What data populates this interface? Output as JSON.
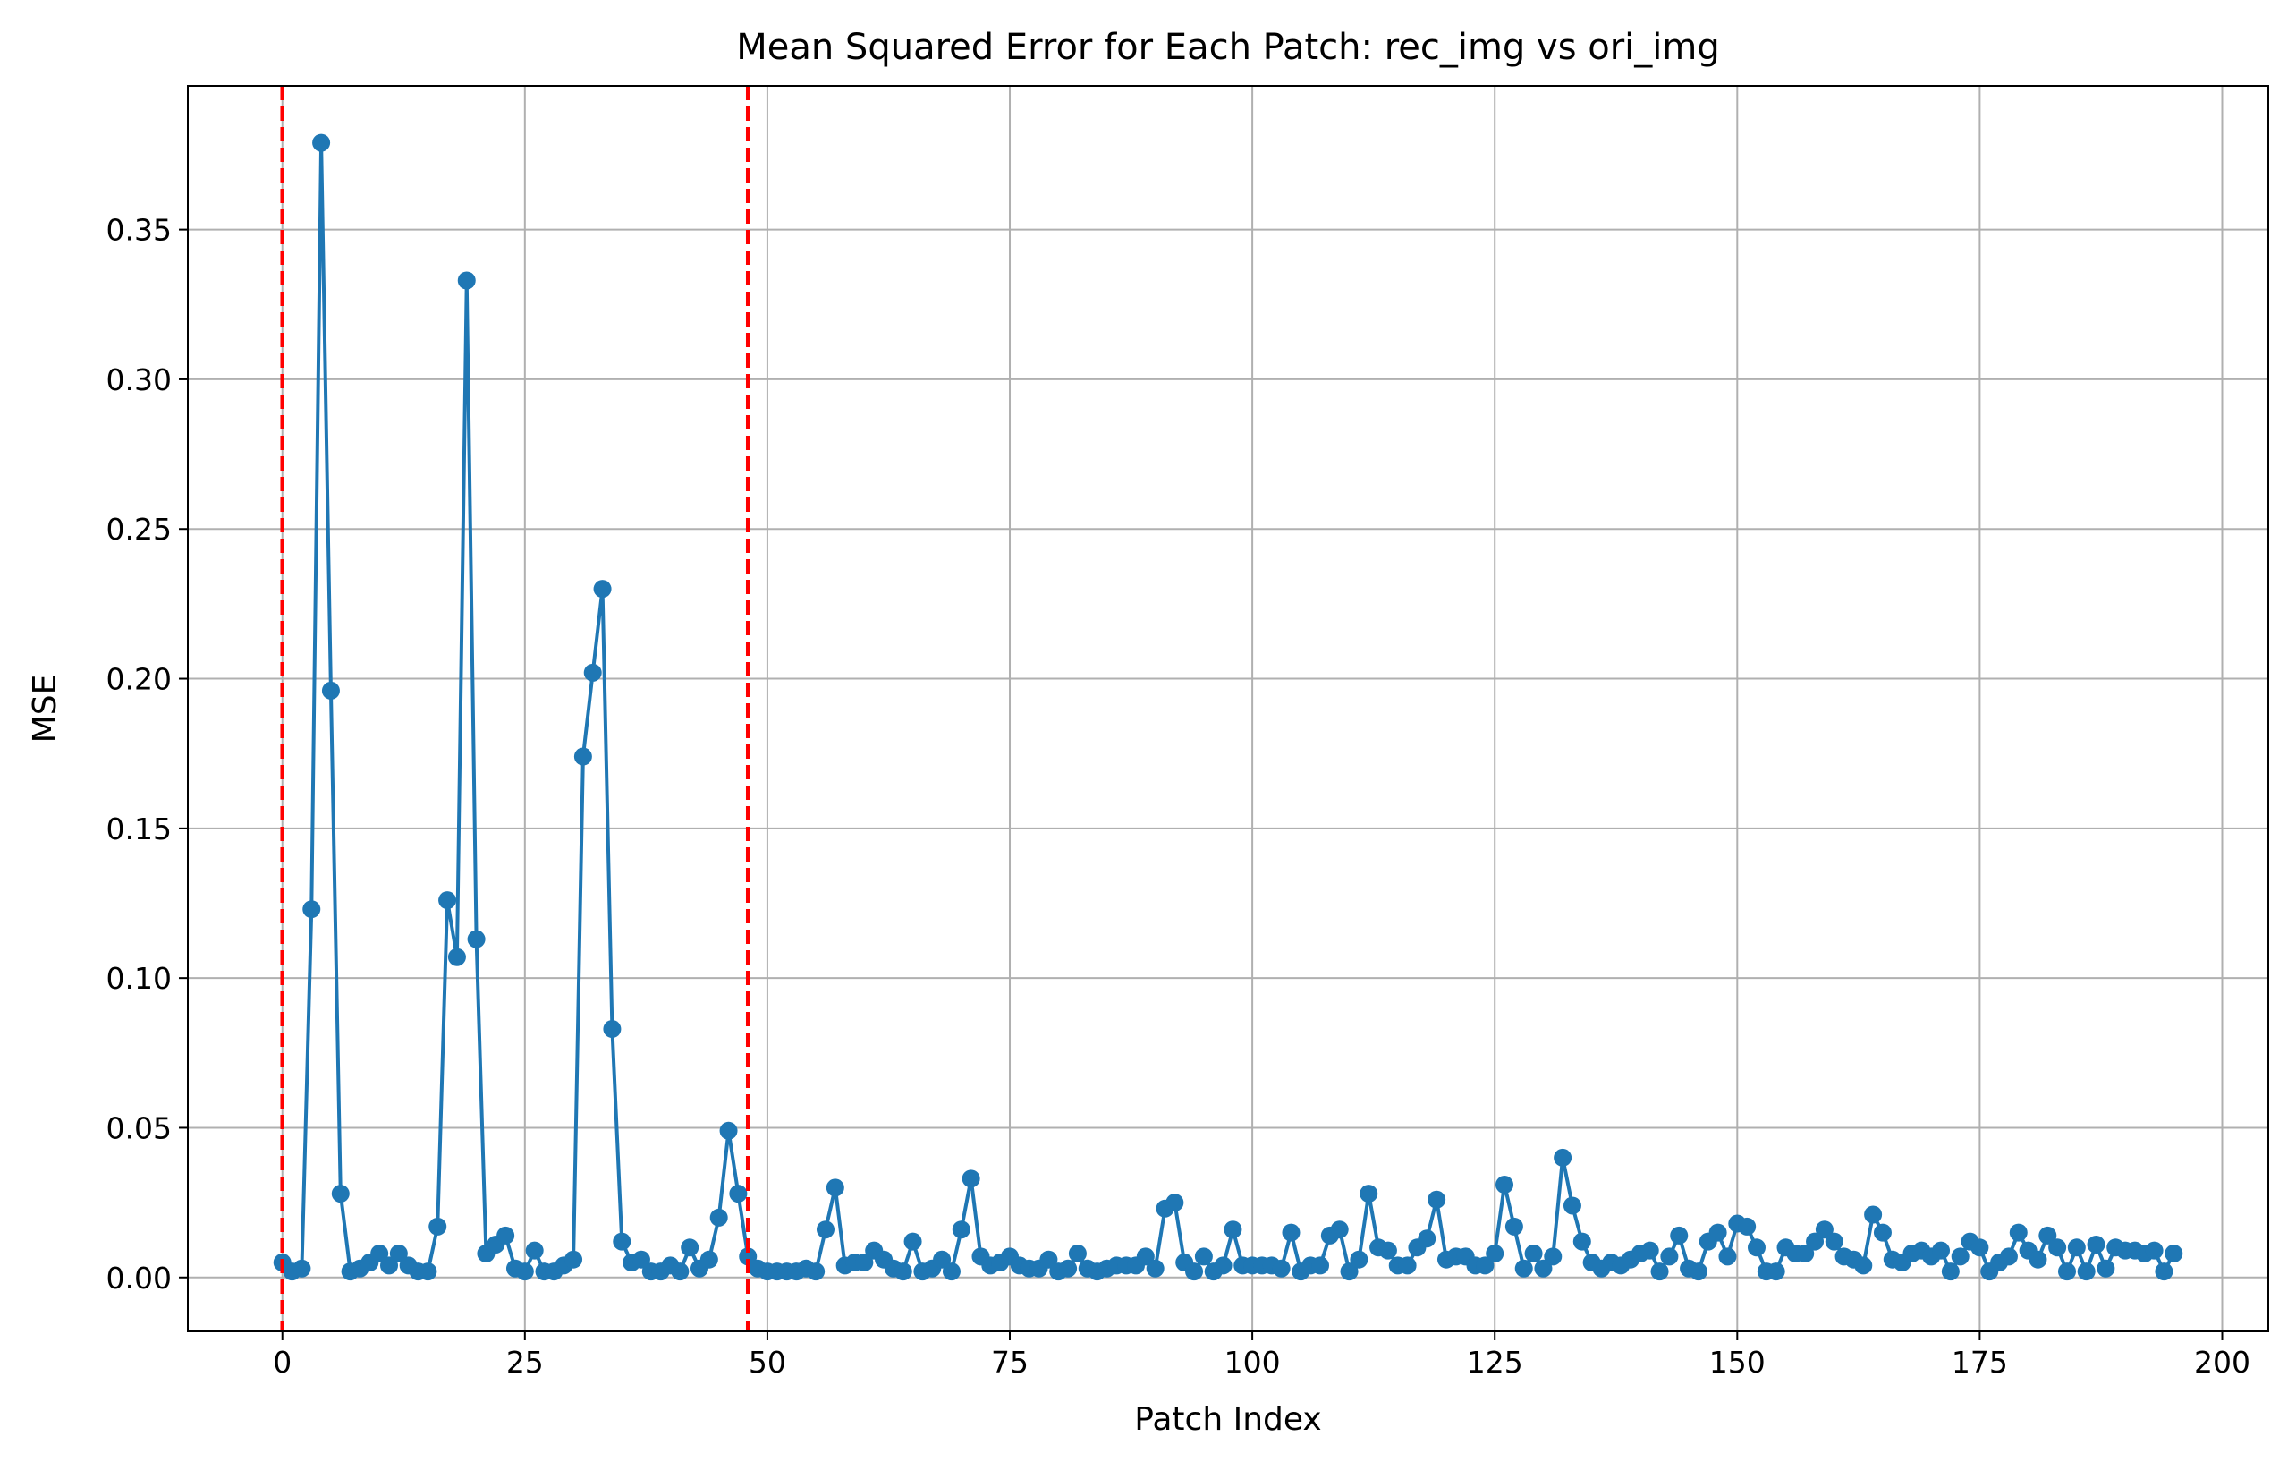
{
  "chart_data": {
    "type": "line",
    "title": "Mean Squared Error for Each Patch: rec_img vs ori_img",
    "xlabel": "Patch Index",
    "ylabel": "MSE",
    "x": [
      0,
      1,
      2,
      3,
      4,
      5,
      6,
      7,
      8,
      9,
      10,
      11,
      12,
      13,
      14,
      15,
      16,
      17,
      18,
      19,
      20,
      21,
      22,
      23,
      24,
      25,
      26,
      27,
      28,
      29,
      30,
      31,
      32,
      33,
      34,
      35,
      36,
      37,
      38,
      39,
      40,
      41,
      42,
      43,
      44,
      45,
      46,
      47,
      48,
      49,
      50,
      51,
      52,
      53,
      54,
      55,
      56,
      57,
      58,
      59,
      60,
      61,
      62,
      63,
      64,
      65,
      66,
      67,
      68,
      69,
      70,
      71,
      72,
      73,
      74,
      75,
      76,
      77,
      78,
      79,
      80,
      81,
      82,
      83,
      84,
      85,
      86,
      87,
      88,
      89,
      90,
      91,
      92,
      93,
      94,
      95,
      96,
      97,
      98,
      99,
      100,
      101,
      102,
      103,
      104,
      105,
      106,
      107,
      108,
      109,
      110,
      111,
      112,
      113,
      114,
      115,
      116,
      117,
      118,
      119,
      120,
      121,
      122,
      123,
      124,
      125,
      126,
      127,
      128,
      129,
      130,
      131,
      132,
      133,
      134,
      135,
      136,
      137,
      138,
      139,
      140,
      141,
      142,
      143,
      144,
      145,
      146,
      147,
      148,
      149,
      150,
      151,
      152,
      153,
      154,
      155,
      156,
      157,
      158,
      159,
      160,
      161,
      162,
      163,
      164,
      165,
      166,
      167,
      168,
      169,
      170,
      171,
      172,
      173,
      174,
      175,
      176,
      177,
      178,
      179,
      180,
      181,
      182,
      183,
      184,
      185,
      186,
      187,
      188,
      189,
      190,
      191,
      192,
      193,
      194,
      195
    ],
    "series": [
      {
        "color": "#1f77b4",
        "values": [
          0.005,
          0.002,
          0.003,
          0.123,
          0.379,
          0.196,
          0.028,
          0.002,
          0.003,
          0.005,
          0.008,
          0.004,
          0.008,
          0.004,
          0.002,
          0.002,
          0.017,
          0.126,
          0.107,
          0.333,
          0.113,
          0.008,
          0.011,
          0.014,
          0.003,
          0.002,
          0.009,
          0.002,
          0.002,
          0.004,
          0.006,
          0.174,
          0.202,
          0.23,
          0.083,
          0.012,
          0.005,
          0.006,
          0.002,
          0.002,
          0.004,
          0.002,
          0.01,
          0.003,
          0.006,
          0.02,
          0.049,
          0.028,
          0.007,
          0.003,
          0.002,
          0.002,
          0.002,
          0.002,
          0.003,
          0.002,
          0.016,
          0.03,
          0.004,
          0.005,
          0.005,
          0.009,
          0.006,
          0.003,
          0.002,
          0.012,
          0.002,
          0.003,
          0.006,
          0.002,
          0.016,
          0.033,
          0.007,
          0.004,
          0.005,
          0.007,
          0.004,
          0.003,
          0.003,
          0.006,
          0.002,
          0.003,
          0.008,
          0.003,
          0.002,
          0.003,
          0.004,
          0.004,
          0.004,
          0.007,
          0.003,
          0.023,
          0.025,
          0.005,
          0.002,
          0.007,
          0.002,
          0.004,
          0.016,
          0.004,
          0.004,
          0.004,
          0.004,
          0.003,
          0.015,
          0.002,
          0.004,
          0.004,
          0.014,
          0.016,
          0.002,
          0.006,
          0.028,
          0.01,
          0.009,
          0.004,
          0.004,
          0.01,
          0.013,
          0.026,
          0.006,
          0.007,
          0.007,
          0.004,
          0.004,
          0.008,
          0.031,
          0.017,
          0.003,
          0.008,
          0.003,
          0.007,
          0.04,
          0.024,
          0.012,
          0.005,
          0.003,
          0.005,
          0.004,
          0.006,
          0.008,
          0.009,
          0.002,
          0.007,
          0.014,
          0.003,
          0.002,
          0.012,
          0.015,
          0.007,
          0.018,
          0.017,
          0.01,
          0.002,
          0.002,
          0.01,
          0.008,
          0.008,
          0.012,
          0.016,
          0.012,
          0.007,
          0.006,
          0.004,
          0.021,
          0.015,
          0.006,
          0.005,
          0.008,
          0.009,
          0.007,
          0.009,
          0.002,
          0.007,
          0.012,
          0.01,
          0.002,
          0.005,
          0.007,
          0.015,
          0.009,
          0.006,
          0.014,
          0.01,
          0.002,
          0.01,
          0.002,
          0.011,
          0.003,
          0.01,
          0.009,
          0.009,
          0.008,
          0.009,
          0.002,
          0.008
        ]
      }
    ],
    "xlim": [
      -9.75,
      204.75
    ],
    "ylim": [
      -0.018,
      0.398
    ],
    "xticks": [
      0,
      25,
      50,
      75,
      100,
      125,
      150,
      175,
      200
    ],
    "yticks": [
      {
        "value": 0,
        "label": "0.00"
      },
      {
        "value": 0.05,
        "label": "0.05"
      },
      {
        "value": 0.1,
        "label": "0.10"
      },
      {
        "value": 0.15,
        "label": "0.15"
      },
      {
        "value": 0.2,
        "label": "0.20"
      },
      {
        "value": 0.25,
        "label": "0.25"
      },
      {
        "value": 0.3,
        "label": "0.30"
      },
      {
        "value": 0.35,
        "label": "0.35"
      }
    ],
    "vlines": [
      0,
      48
    ],
    "vline_color": "#ff0000",
    "grid": true
  }
}
